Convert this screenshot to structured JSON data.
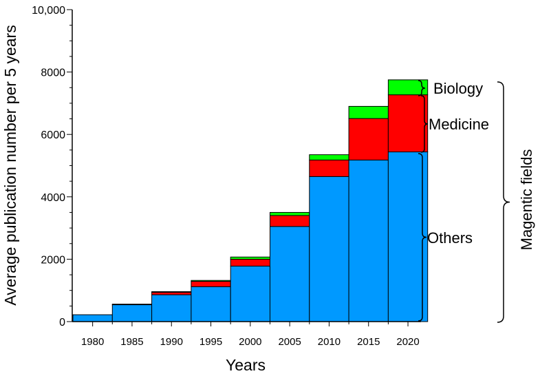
{
  "chart_data": {
    "type": "bar",
    "stacked": true,
    "xlabel": "Years",
    "ylabel": "Average publication number per 5 years",
    "ylim": [
      0,
      10000
    ],
    "yticks": [
      0,
      2000,
      4000,
      6000,
      8000,
      10000
    ],
    "ytick_labels": [
      "0",
      "2000",
      "4000",
      "6000",
      "8000",
      "10,000"
    ],
    "categories": [
      "1980",
      "1985",
      "1990",
      "1995",
      "2000",
      "2005",
      "2010",
      "2015",
      "2020"
    ],
    "series": [
      {
        "name": "Others",
        "color": "#0099ff",
        "values": [
          220,
          540,
          860,
          1120,
          1780,
          3050,
          4650,
          5180,
          5440
        ]
      },
      {
        "name": "Medicine",
        "color": "#ff0000",
        "values": [
          0,
          0,
          80,
          170,
          220,
          350,
          530,
          1330,
          1830
        ]
      },
      {
        "name": "Biology",
        "color": "#00ff00",
        "values": [
          0,
          20,
          20,
          30,
          70,
          100,
          170,
          390,
          480
        ]
      }
    ],
    "grid": false,
    "annotations": {
      "biology": "Biology",
      "medicine": "Medicine",
      "others": "Others",
      "magnetic": "Magentic fields"
    }
  }
}
